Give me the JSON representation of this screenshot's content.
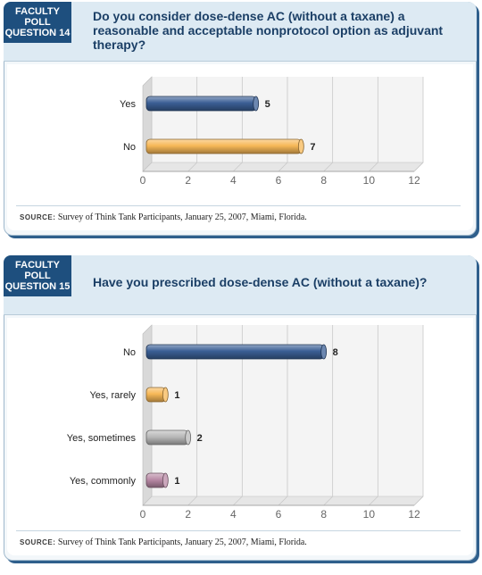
{
  "panels": [
    {
      "tag": [
        "FACULTY",
        "POLL",
        "QUESTION 14"
      ],
      "question": "Do you consider dose-dense AC (without a taxane) a reasonable and acceptable nonprotocol option as adjuvant therapy?",
      "source_label": "SOURCE:",
      "source_text": "Survey of Think Tank Participants, January 25, 2007, Miami, Florida.",
      "chart_data": {
        "type": "bar",
        "orientation": "horizontal",
        "categories": [
          "Yes",
          "No"
        ],
        "values": [
          5,
          7
        ],
        "bar_colors": [
          "#3b5f95",
          "#f7b857"
        ],
        "xlim": [
          0,
          12
        ],
        "xticks": [
          "0",
          "2",
          "4",
          "6",
          "8",
          "10",
          "12"
        ],
        "grid": true
      }
    },
    {
      "tag": [
        "FACULTY",
        "POLL",
        "QUESTION 15"
      ],
      "question": "Have you prescribed dose-dense AC (without a taxane)?",
      "source_label": "SOURCE:",
      "source_text": "Survey of Think Tank Participants, January 25, 2007, Miami, Florida.",
      "chart_data": {
        "type": "bar",
        "orientation": "horizontal",
        "categories": [
          "No",
          "Yes, rarely",
          "Yes, sometimes",
          "Yes, commonly"
        ],
        "values": [
          8,
          1,
          2,
          1
        ],
        "bar_colors": [
          "#3b5f95",
          "#f7b857",
          "#b9b9b9",
          "#b98aa6"
        ],
        "xlim": [
          0,
          12
        ],
        "xticks": [
          "0",
          "2",
          "4",
          "6",
          "8",
          "10",
          "12"
        ],
        "grid": true
      }
    }
  ]
}
